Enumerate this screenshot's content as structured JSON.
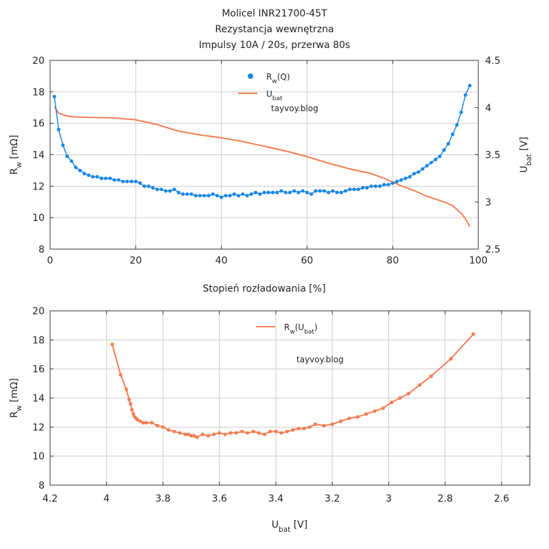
{
  "title": {
    "line1": "Molicel INR21700-45T",
    "line2": "Rezystancja wewnętrzna",
    "line3": "Impulsy 10A / 20s, przerwa 80s"
  },
  "watermark": "tayvoy.blog",
  "colors": {
    "rw": "#1a87e6",
    "ubat": "#f47c52",
    "grid": "#cccccc",
    "axis": "#333333"
  },
  "chart_data": [
    {
      "type": "line",
      "xlabel": "Stopień rozładowania [%]",
      "ylabel_main": "R",
      "ylabel_sub": "w",
      "ylabel_unit": " [mΩ]",
      "y2label_main": "U",
      "y2label_sub": "bat",
      "y2label_unit": " [V]",
      "xlim": [
        0,
        100
      ],
      "ylim": [
        8,
        20
      ],
      "y2lim": [
        2.5,
        4.5
      ],
      "xticks": [
        0,
        20,
        40,
        60,
        80,
        100
      ],
      "yticks": [
        8,
        10,
        12,
        14,
        16,
        18,
        20
      ],
      "y2ticks": [
        2.5,
        3,
        3.5,
        4,
        4.5
      ],
      "y2ticklabels": [
        "2.5",
        "3",
        "3.5",
        "4",
        "4.5"
      ],
      "grid": true,
      "legend": {
        "position": "top-center",
        "entries": [
          {
            "main": "R",
            "sub": "w",
            "rest": "(Q)"
          },
          {
            "main": "U",
            "sub": "bat",
            "rest": ""
          }
        ]
      },
      "series": [
        {
          "name": "Rw(Q)",
          "axis": "left",
          "marker": "circle",
          "x": [
            1,
            2,
            3,
            4,
            5,
            6,
            7,
            8,
            9,
            10,
            11,
            12,
            13,
            14,
            15,
            16,
            17,
            18,
            19,
            20,
            21,
            22,
            23,
            24,
            25,
            26,
            27,
            28,
            29,
            30,
            31,
            32,
            33,
            34,
            35,
            36,
            37,
            38,
            39,
            40,
            41,
            42,
            43,
            44,
            45,
            46,
            47,
            48,
            49,
            50,
            51,
            52,
            53,
            54,
            55,
            56,
            57,
            58,
            59,
            60,
            61,
            62,
            63,
            64,
            65,
            66,
            67,
            68,
            69,
            70,
            71,
            72,
            73,
            74,
            75,
            76,
            77,
            78,
            79,
            80,
            81,
            82,
            83,
            84,
            85,
            86,
            87,
            88,
            89,
            90,
            91,
            92,
            93,
            94,
            95,
            96,
            97,
            98
          ],
          "y": [
            17.7,
            15.6,
            14.6,
            13.9,
            13.6,
            13.2,
            13.0,
            12.8,
            12.7,
            12.6,
            12.6,
            12.5,
            12.5,
            12.5,
            12.4,
            12.4,
            12.3,
            12.3,
            12.3,
            12.3,
            12.2,
            12.0,
            12.0,
            11.9,
            11.8,
            11.8,
            11.7,
            11.7,
            11.8,
            11.6,
            11.5,
            11.5,
            11.5,
            11.4,
            11.4,
            11.4,
            11.4,
            11.5,
            11.4,
            11.3,
            11.4,
            11.4,
            11.5,
            11.4,
            11.5,
            11.4,
            11.5,
            11.6,
            11.5,
            11.6,
            11.6,
            11.6,
            11.6,
            11.7,
            11.6,
            11.6,
            11.7,
            11.6,
            11.7,
            11.6,
            11.5,
            11.7,
            11.7,
            11.7,
            11.6,
            11.7,
            11.6,
            11.6,
            11.7,
            11.8,
            11.8,
            11.8,
            11.9,
            11.9,
            12.0,
            12.0,
            12.0,
            12.1,
            12.1,
            12.2,
            12.3,
            12.4,
            12.5,
            12.6,
            12.8,
            12.9,
            13.1,
            13.3,
            13.5,
            13.7,
            13.9,
            14.3,
            14.7,
            15.3,
            15.9,
            16.7,
            17.8,
            18.4
          ]
        },
        {
          "name": "Ubat",
          "axis": "right",
          "marker": "none",
          "x": [
            1,
            2,
            4,
            6,
            10,
            15,
            20,
            25,
            30,
            35,
            40,
            45,
            50,
            55,
            60,
            65,
            70,
            75,
            78,
            80,
            82,
            85,
            88,
            90,
            92,
            94,
            96,
            97,
            98
          ],
          "y": [
            4.01,
            3.94,
            3.91,
            3.9,
            3.895,
            3.89,
            3.87,
            3.82,
            3.75,
            3.71,
            3.68,
            3.64,
            3.59,
            3.54,
            3.48,
            3.41,
            3.35,
            3.3,
            3.25,
            3.21,
            3.17,
            3.12,
            3.06,
            3.03,
            3.0,
            2.96,
            2.88,
            2.82,
            2.74
          ]
        }
      ]
    },
    {
      "type": "line",
      "xlabel_main": "U",
      "xlabel_sub": "bat",
      "xlabel_unit": " [V]",
      "ylabel_main": "R",
      "ylabel_sub": "w",
      "ylabel_unit": " [mΩ]",
      "xlim": [
        4.2,
        2.5
      ],
      "ylim": [
        8,
        20
      ],
      "xticks": [
        4.2,
        4,
        3.8,
        3.6,
        3.4,
        3.2,
        3,
        2.8,
        2.6
      ],
      "xticklabels": [
        "4.2",
        "4",
        "3.8",
        "3.6",
        "3.4",
        "3.2",
        "3",
        "2.8",
        "2.6"
      ],
      "yticks": [
        8,
        10,
        12,
        14,
        16,
        18,
        20
      ],
      "grid": true,
      "legend": {
        "position": "top-center",
        "entries": [
          {
            "main": "R",
            "sub": "w",
            "rest": "(U",
            "sub2": "bat",
            "rest2": ")"
          }
        ]
      },
      "series": [
        {
          "name": "Rw(Ubat)",
          "marker": "circle",
          "x": [
            3.98,
            3.95,
            3.93,
            3.92,
            3.915,
            3.91,
            3.905,
            3.9,
            3.895,
            3.89,
            3.88,
            3.87,
            3.86,
            3.84,
            3.82,
            3.8,
            3.78,
            3.76,
            3.74,
            3.72,
            3.71,
            3.7,
            3.69,
            3.68,
            3.66,
            3.64,
            3.62,
            3.6,
            3.58,
            3.56,
            3.54,
            3.52,
            3.5,
            3.48,
            3.46,
            3.44,
            3.42,
            3.4,
            3.38,
            3.36,
            3.34,
            3.32,
            3.3,
            3.28,
            3.26,
            3.23,
            3.2,
            3.17,
            3.14,
            3.11,
            3.08,
            3.05,
            3.02,
            2.99,
            2.96,
            2.93,
            2.89,
            2.85,
            2.78,
            2.7
          ],
          "y": [
            17.7,
            15.6,
            14.6,
            13.9,
            13.6,
            13.2,
            12.9,
            12.7,
            12.6,
            12.5,
            12.4,
            12.3,
            12.3,
            12.3,
            12.1,
            12.0,
            11.8,
            11.7,
            11.6,
            11.5,
            11.5,
            11.4,
            11.4,
            11.3,
            11.5,
            11.4,
            11.5,
            11.6,
            11.5,
            11.6,
            11.6,
            11.7,
            11.6,
            11.7,
            11.6,
            11.5,
            11.7,
            11.7,
            11.6,
            11.7,
            11.8,
            11.9,
            11.9,
            12.0,
            12.2,
            12.1,
            12.2,
            12.4,
            12.6,
            12.7,
            12.9,
            13.1,
            13.3,
            13.7,
            14.0,
            14.3,
            14.9,
            15.5,
            16.7,
            18.4
          ]
        }
      ]
    }
  ]
}
